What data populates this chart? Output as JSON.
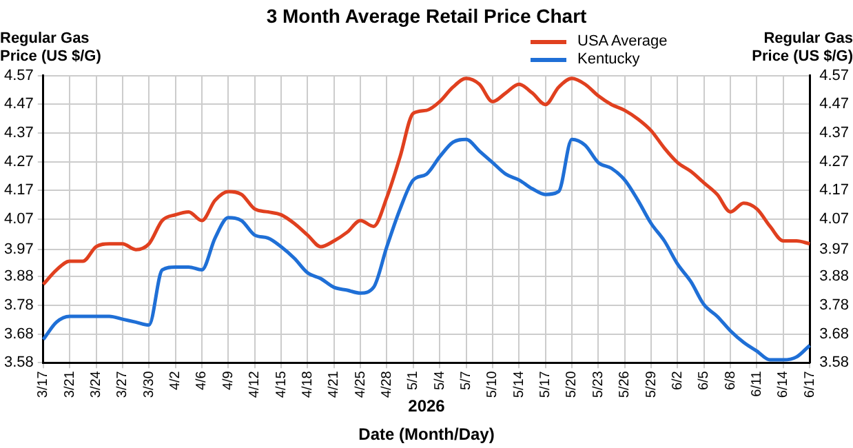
{
  "chart_data": {
    "type": "line",
    "title": "3 Month Average Retail Price Chart",
    "xlabel": "Date (Month/Day)",
    "ylabel": "Regular Gas Price (US $/G)",
    "y2label": "Regular Gas Price (US $/G)",
    "annotations": [
      "2026"
    ],
    "categories": [
      "3/17",
      null,
      "3/21",
      null,
      "3/24",
      null,
      "3/27",
      null,
      "3/30",
      null,
      "4/2",
      null,
      "4/6",
      null,
      "4/9",
      null,
      "4/12",
      null,
      "4/15",
      null,
      "4/18",
      null,
      "4/21",
      null,
      "4/25",
      null,
      "4/28",
      null,
      "5/1",
      null,
      "5/4",
      null,
      "5/7",
      null,
      "5/10",
      null,
      "5/14",
      null,
      "5/17",
      null,
      "5/20",
      null,
      "5/23",
      null,
      "5/26",
      null,
      "5/29",
      null,
      "6/2",
      null,
      "6/5",
      null,
      "6/8",
      null,
      "6/11",
      null,
      "6/14",
      null,
      "6/17"
    ],
    "series": [
      {
        "name": "USA Average",
        "color": "#e0401f",
        "values": [
          3.85,
          3.9,
          3.93,
          3.93,
          3.98,
          3.99,
          3.99,
          3.97,
          3.99,
          4.07,
          4.09,
          4.1,
          4.07,
          4.14,
          4.17,
          4.16,
          4.11,
          4.1,
          4.09,
          4.06,
          4.02,
          3.98,
          4.0,
          4.03,
          4.07,
          4.05,
          4.15,
          4.29,
          4.44,
          4.45,
          4.48,
          4.53,
          4.56,
          4.54,
          4.48,
          4.51,
          4.54,
          4.51,
          4.47,
          4.53,
          4.56,
          4.54,
          4.5,
          4.47,
          4.45,
          4.42,
          4.38,
          4.32,
          4.27,
          4.24,
          4.2,
          4.16,
          4.1,
          4.13,
          4.11,
          4.05,
          4.0,
          4.0,
          3.99
        ]
      },
      {
        "name": "Kentucky",
        "color": "#1f6fd6",
        "values": [
          3.66,
          3.72,
          3.74,
          3.74,
          3.74,
          3.74,
          3.73,
          3.72,
          3.71,
          3.9,
          3.91,
          3.91,
          3.9,
          4.01,
          4.08,
          4.07,
          4.02,
          4.01,
          3.98,
          3.94,
          3.89,
          3.87,
          3.84,
          3.83,
          3.82,
          3.84,
          3.98,
          4.11,
          4.21,
          4.23,
          4.29,
          4.34,
          4.35,
          4.31,
          4.27,
          4.23,
          4.21,
          4.18,
          4.16,
          4.17,
          4.35,
          4.33,
          4.27,
          4.25,
          4.21,
          4.14,
          4.06,
          4.0,
          3.92,
          3.86,
          3.78,
          3.74,
          3.69,
          3.65,
          3.62,
          3.59,
          3.59,
          3.6,
          3.64
        ]
      }
    ],
    "ylim": [
      3.58,
      4.57
    ],
    "yticks": [
      3.58,
      {
        "value": 3.679,
        "label": "3.68"
      },
      {
        "value": 3.778,
        "label": "3.78"
      },
      {
        "value": 3.877,
        "label": "3.88"
      },
      3.97,
      {
        "value": 4.075,
        "label": "4.07"
      },
      {
        "value": 4.174,
        "label": "4.17"
      },
      {
        "value": 4.273,
        "label": "4.27"
      },
      {
        "value": 4.372,
        "label": "4.37"
      },
      {
        "value": 4.471,
        "label": "4.47"
      },
      4.57
    ],
    "y2lim": [
      3.58,
      4.57
    ],
    "y2ticks": [
      3.58,
      {
        "value": 3.679,
        "label": "3.68"
      },
      {
        "value": 3.778,
        "label": "3.78"
      },
      {
        "value": 3.877,
        "label": "3.88"
      },
      3.97,
      {
        "value": 4.075,
        "label": "4.07"
      },
      {
        "value": 4.174,
        "label": "4.17"
      },
      {
        "value": 4.273,
        "label": "4.27"
      },
      {
        "value": 4.372,
        "label": "4.37"
      },
      {
        "value": 4.471,
        "label": "4.47"
      },
      4.57
    ],
    "grid": true,
    "legend": "top right",
    "marker": "none",
    "line_style": "solid"
  }
}
